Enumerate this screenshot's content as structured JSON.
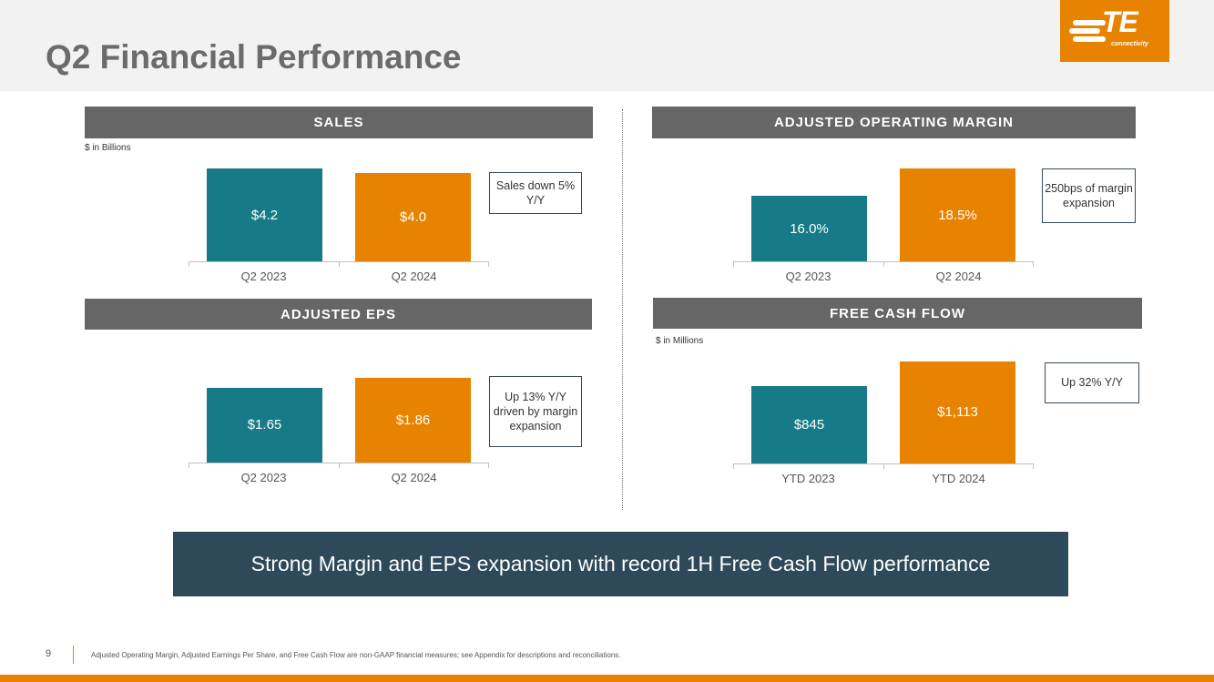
{
  "title": "Q2 Financial Performance",
  "logo": {
    "text": "TE",
    "subtext": "connectivity"
  },
  "colors": {
    "prior": "#177a87",
    "current": "#e88300",
    "header": "#666666",
    "banner": "#2e4a5a"
  },
  "chart_data": [
    {
      "type": "bar",
      "title": "SALES",
      "unit_note": "$ in Billions",
      "categories": [
        "Q2 2023",
        "Q2 2024"
      ],
      "values": [
        4.2,
        4.0
      ],
      "labels": [
        "$4.2",
        "$4.0"
      ],
      "ylim": [
        0,
        4.5
      ],
      "callout": "Sales down 5% Y/Y"
    },
    {
      "type": "bar",
      "title": "ADJUSTED OPERATING MARGIN",
      "categories": [
        "Q2 2023",
        "Q2 2024"
      ],
      "values": [
        16.0,
        18.5
      ],
      "labels": [
        "16.0%",
        "18.5%"
      ],
      "ylim": [
        10,
        19
      ],
      "callout": "250bps of margin expansion"
    },
    {
      "type": "bar",
      "title": "ADJUSTED EPS",
      "categories": [
        "Q2 2023",
        "Q2 2024"
      ],
      "values": [
        1.65,
        1.86
      ],
      "labels": [
        "$1.65",
        "$1.86"
      ],
      "ylim": [
        0,
        2.1
      ],
      "callout": "Up 13% Y/Y driven by margin expansion"
    },
    {
      "type": "bar",
      "title": "FREE CASH FLOW",
      "unit_note": "$ in Millions",
      "categories": [
        "YTD 2023",
        "YTD 2024"
      ],
      "values": [
        845,
        1113
      ],
      "labels": [
        "$845",
        "$1,113"
      ],
      "ylim": [
        0,
        1140
      ],
      "callout": "Up 32% Y/Y"
    }
  ],
  "banner": "Strong Margin and EPS expansion with record 1H Free Cash Flow performance",
  "footer": {
    "page": "9",
    "note": "Adjusted Operating Margin, Adjusted Earnings Per Share, and Free Cash Flow are non-GAAP financial measures; see Appendix for descriptions and reconciliations."
  }
}
